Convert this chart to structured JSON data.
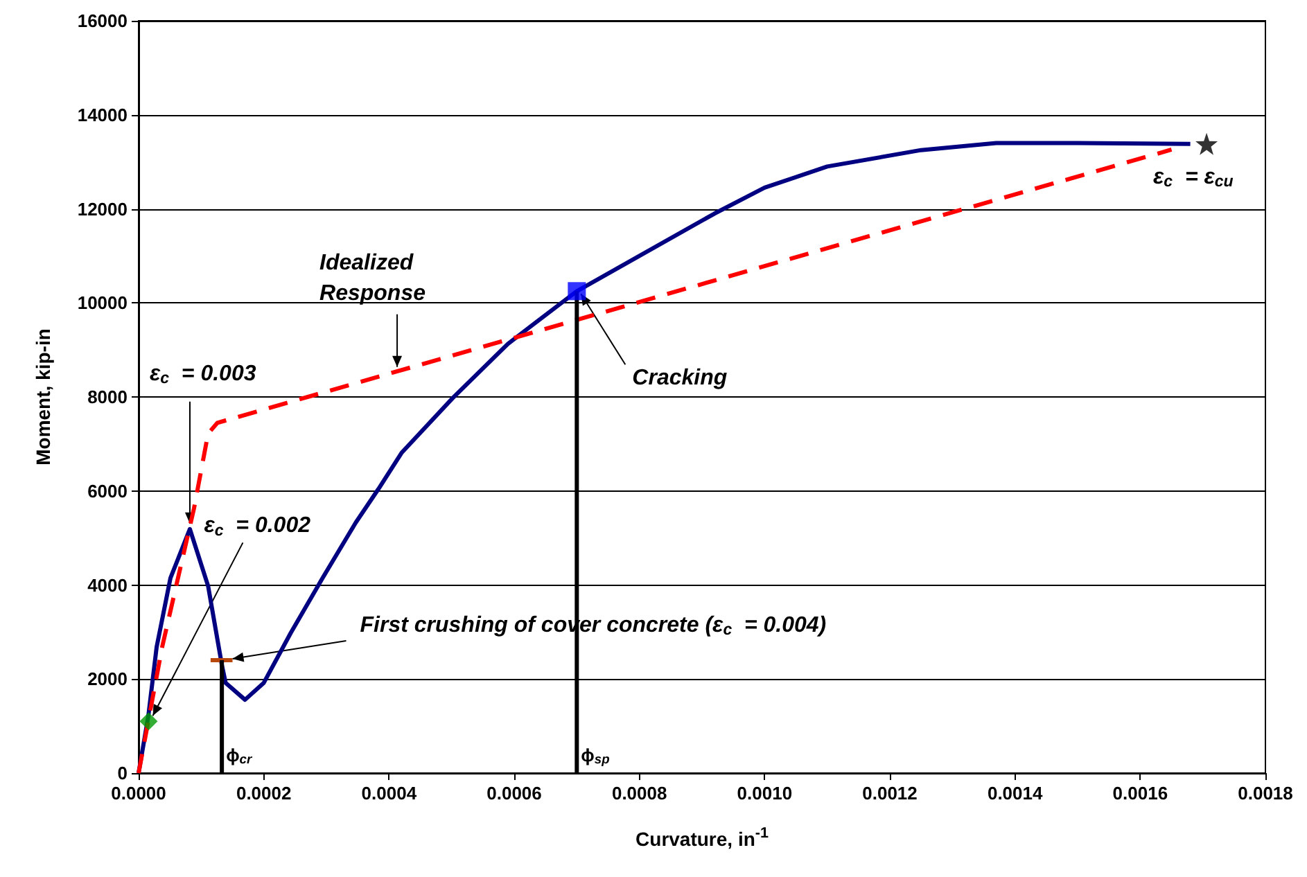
{
  "chart_data": {
    "type": "line",
    "xlabel": "Curvature, in$^{-1}$",
    "ylabel": "Moment, kip-in",
    "xlim": [
      0,
      0.0018
    ],
    "ylim": [
      0,
      16000
    ],
    "xticks": [
      {
        "value": 0,
        "label": "0.0000"
      },
      {
        "value": 0.0002,
        "label": "0.0002"
      },
      {
        "value": 0.0004,
        "label": "0.0004"
      },
      {
        "value": 0.0006,
        "label": "0.0006"
      },
      {
        "value": 0.0008,
        "label": "0.0008"
      },
      {
        "value": 0.001,
        "label": "0.0010"
      },
      {
        "value": 0.0012,
        "label": "0.0012"
      },
      {
        "value": 0.0014,
        "label": "0.0014"
      },
      {
        "value": 0.0016,
        "label": "0.0016"
      },
      {
        "value": 0.0018,
        "label": "0.0018"
      }
    ],
    "yticks": [
      0,
      2000,
      4000,
      6000,
      8000,
      10000,
      12000,
      14000,
      16000
    ],
    "grid": "y",
    "series": [
      {
        "color": "#000080",
        "marker": "none",
        "line_style": "solid",
        "x": [
          0,
          1.55e-05,
          2.88e-05,
          5.09e-05,
          8.19e-05,
          0.000111,
          0.000133,
          0.000139,
          0.00017,
          0.0002,
          0.000243,
          0.000294,
          0.000347,
          0.000383,
          0.00042,
          0.000502,
          0.00059,
          0.0007,
          0.0008,
          0.00092,
          0.001,
          0.0011,
          0.00125,
          0.00137,
          0.0015,
          0.00168
        ],
        "values": [
          0,
          1210,
          2680,
          4150,
          5190,
          3980,
          2300,
          1920,
          1560,
          1920,
          2980,
          4150,
          5330,
          6040,
          6810,
          7980,
          9130,
          10250,
          11000,
          11900,
          12450,
          12900,
          13250,
          13400,
          13400,
          13380
        ]
      },
      {
        "color": "#ff0000",
        "marker": "none",
        "line_style": "dashed",
        "x": [
          0,
          3.76e-05,
          8.85e-05,
          0.000111,
          0.000126,
          0.00165
        ],
        "values": [
          0,
          2680,
          5630,
          7220,
          7450,
          13260
        ]
      },
      {
        "type": "line",
        "color": "#b8470b",
        "marker": "none",
        "line_style": "solid",
        "x": [
          0.000115,
          0.00015
        ],
        "values": [
          2400,
          2400
        ]
      },
      {
        "type": "line",
        "color": "#000000",
        "marker": "none",
        "line_style": "solid",
        "x": [
          0.000133,
          0.000133
        ],
        "values": [
          0,
          2400
        ]
      },
      {
        "type": "line",
        "color": "#000000",
        "marker": "none",
        "line_style": "solid",
        "x": [
          0.0007,
          0.0007
        ],
        "values": [
          0,
          10250
        ]
      },
      {
        "type": "scatter",
        "color": "#009900",
        "marker": "diamond",
        "x": [
          1.6e-05
        ],
        "values": [
          1100
        ]
      },
      {
        "type": "scatter",
        "color": "#0000ff",
        "marker": "square",
        "x": [
          0.0007
        ],
        "values": [
          10250
        ]
      },
      {
        "type": "scatter",
        "color": "#000000",
        "marker": "star",
        "x": [
          0.001706
        ],
        "values": [
          13380
        ]
      }
    ],
    "annotations": [
      {
        "text": "ε$_{c}$  = 0.003",
        "x": 8.19e-05,
        "y": 5190
      },
      {
        "text": "ε$_{c}$  = 0.002",
        "x": 1.6e-05,
        "y": 1100
      },
      {
        "text": "First crushing of cover concrete (ε$_{c}$  = 0.004)",
        "x": 0.00015,
        "y": 2400
      },
      {
        "text": "Idealized Response",
        "x": 0.000413,
        "y": 8520
      },
      {
        "text": "Cracking",
        "x": 0.0007,
        "y": 10250
      },
      "ε$_{c}$  = ε$_{cu}$",
      {
        "text": "ϕ$_{cr}$",
        "x": 0.000133,
        "y": 0
      },
      {
        "text": "ϕ$_{sp}$",
        "x": 0.0007,
        "y": 0
      }
    ]
  }
}
